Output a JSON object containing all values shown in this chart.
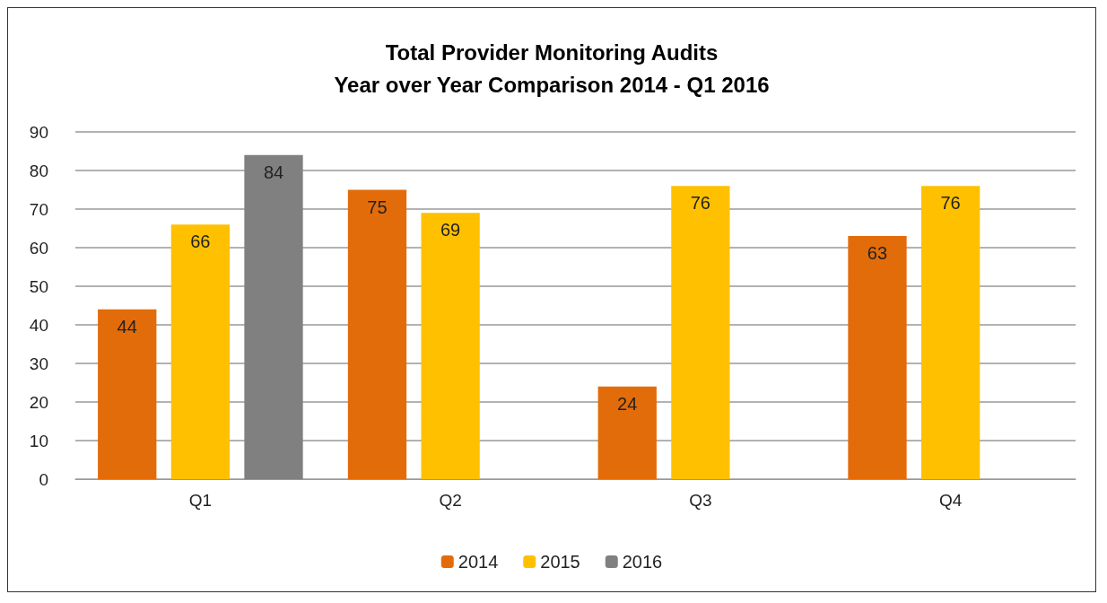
{
  "chart_data": {
    "type": "bar",
    "title": "Total Provider Monitoring Audits\nYear over Year Comparison 2014 - Q1 2016",
    "categories": [
      "Q1",
      "Q2",
      "Q3",
      "Q4"
    ],
    "series": [
      {
        "name": "2014",
        "color": "#e36c0a",
        "values": [
          44,
          75,
          24,
          63
        ]
      },
      {
        "name": "2015",
        "color": "#ffc000",
        "values": [
          66,
          69,
          76,
          76
        ]
      },
      {
        "name": "2016",
        "color": "#808080",
        "values": [
          84,
          null,
          null,
          null
        ]
      }
    ],
    "ylim": [
      0,
      90
    ],
    "yticks": [
      0,
      10,
      20,
      30,
      40,
      50,
      60,
      70,
      80,
      90
    ],
    "grid": "y",
    "legend": "bottom",
    "data_labels": true
  }
}
